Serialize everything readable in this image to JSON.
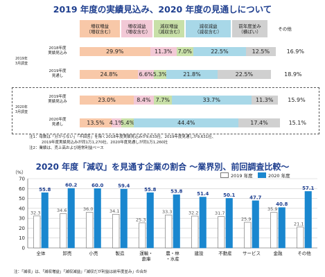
{
  "top_title": "2019 年度の実績見込み、2020 年度の見通しについて",
  "bottom_title": "2020 年度「減収」を見通す企業の割合 ～業界別、前回調査比較～",
  "colors": {
    "inc_inc": "#f8c8a8",
    "inc_dec": "#f2c9d6",
    "dec_inc": "#c8e0a8",
    "dec_dec": "#a8d8e8",
    "flat": "#d0d0d0",
    "other": "#ffffff",
    "bar_2019": "#ffffff",
    "bar_2020": "#1a87cf",
    "title": "#1f3f8f"
  },
  "stack_chart": {
    "headers": [
      "増収増益\n（増収含む）",
      "増収減益\n（増収含む）",
      "減収増益\n（減収含む）",
      "減収減益\n（減収含む）",
      "前年度並み\n（横ばい）",
      "その他"
    ],
    "groups": [
      {
        "label": "2019年\n3月調査",
        "rows": [
          {
            "label": "2018年度\n実績見込み",
            "values": [
              29.9,
              11.3,
              7.0,
              22.5,
              12.5,
              16.9
            ],
            "texts": [
              "29.9%",
              "11.3%",
              "7.0%",
              "22.5%",
              "12.5%",
              "16.9%"
            ]
          },
          {
            "label": "2019年度\n見通し",
            "values": [
              24.8,
              6.6,
              5.3,
              21.8,
              22.5,
              18.9
            ],
            "texts": [
              "24.8%",
              "6.6%",
              "5.3%",
              "21.8%",
              "22.5%",
              "18.9%"
            ]
          }
        ]
      },
      {
        "label": "2020年\n3月調査",
        "rows": [
          {
            "label": "2019年度\n実績見込み",
            "values": [
              23.0,
              8.4,
              7.7,
              33.7,
              11.3,
              15.9
            ],
            "texts": [
              "23.0%",
              "8.4%",
              "7.7%",
              "33.7%",
              "11.3%",
              "15.9%"
            ]
          },
          {
            "label": "2020年度\n見通し",
            "values": [
              13.5,
              4.1,
              5.4,
              44.4,
              17.4,
              15.1
            ],
            "texts": [
              "13.5%",
              "4.1%",
              "5.4%",
              "44.4%",
              "17.4%",
              "15.1%"
            ]
          }
        ]
      }
    ]
  },
  "notes": {
    "n1": "注1：母数は「分からない」「不回答」を除く2018年度実績見込みが9,633社、2019年度見通しが9,631社、",
    "n1b": "2019年度実績見込みが同1万1,270社、2020年度見通しが同1万1,260社",
    "n2": "注2：業績は、売上高および経常利益ベース",
    "bottom": "注：「減収」は、「減収増益」「減収減益」「減収だが利益は前年度並み」の合計"
  },
  "chart_data": {
    "type": "bar",
    "categories": [
      "全体",
      "卸売",
      "小売",
      "製造",
      "運輸・倉庫",
      "農・林・水産",
      "建設",
      "不動産",
      "サービス",
      "金融",
      "その他"
    ],
    "category_lines": [
      [
        "全体"
      ],
      [
        "卸売"
      ],
      [
        "小売"
      ],
      [
        "製造"
      ],
      [
        "運輸・",
        "倉庫"
      ],
      [
        "農・林",
        "・水産"
      ],
      [
        "建設"
      ],
      [
        "不動産"
      ],
      [
        "サービス"
      ],
      [
        "金融"
      ],
      [
        "その他"
      ]
    ],
    "series": [
      {
        "name": "2019 年度",
        "values": [
          32.3,
          34.6,
          36.0,
          34.1,
          25.3,
          33.3,
          32.2,
          31.7,
          25.9,
          35.9,
          21.1
        ],
        "labels": [
          "32.3",
          "34.6",
          "36.0",
          "34.1",
          "25.3",
          "33.3",
          "32.2",
          "31.7",
          "25.9",
          "35.9",
          "21.1"
        ]
      },
      {
        "name": "2020 年度",
        "values": [
          55.8,
          60.2,
          60.0,
          59.4,
          55.8,
          53.8,
          51.4,
          50.1,
          47.7,
          40.8,
          57.1
        ],
        "labels": [
          "55.8",
          "60.2",
          "60.0",
          "59.4",
          "55.8",
          "53.8",
          "51.4",
          "50.1",
          "47.7",
          "40.8",
          "57.1"
        ]
      }
    ],
    "ylabel": "（%）",
    "ylim": [
      0,
      70
    ],
    "yticks": [
      "0",
      "10",
      "20",
      "30",
      "40",
      "50",
      "60",
      "70"
    ],
    "grid": true
  }
}
